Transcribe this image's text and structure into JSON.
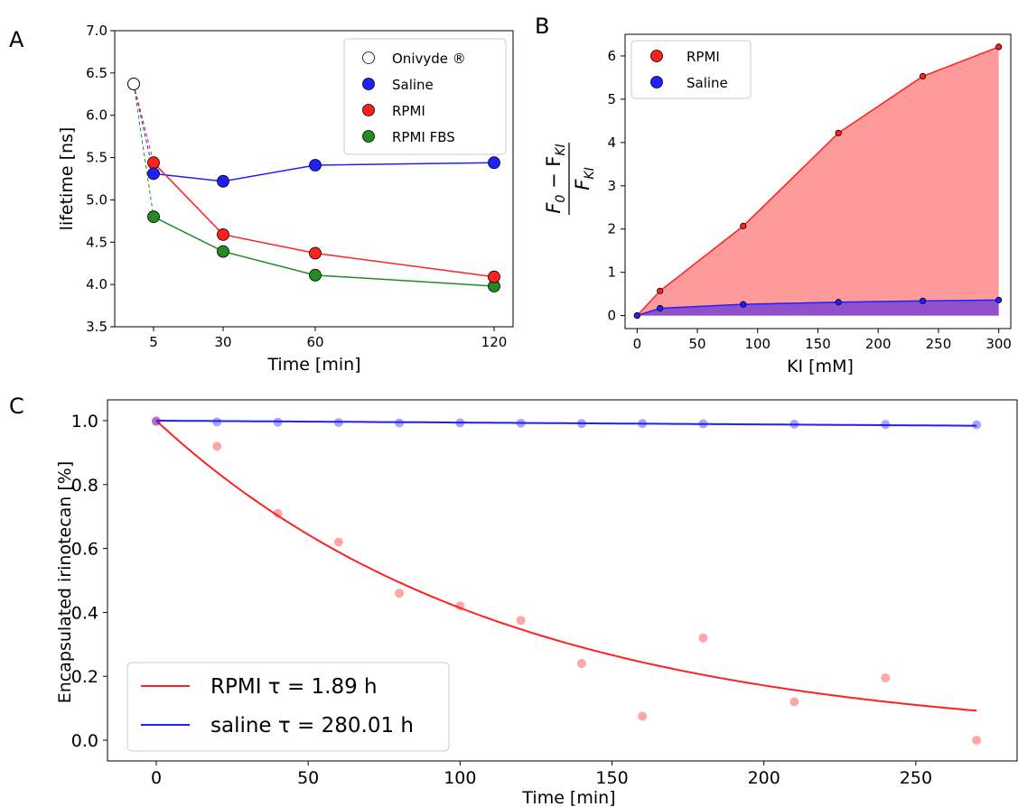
{
  "panels": {
    "a": {
      "letter": "A"
    },
    "b": {
      "letter": "B"
    },
    "c": {
      "letter": "C"
    }
  },
  "chart_data": [
    {
      "id": "A",
      "type": "line",
      "xlabel": "Time [min]",
      "ylabel": "lifetime [ns]",
      "x_ticks": [
        "5",
        "30",
        "60",
        "120"
      ],
      "y_ticks": [
        "3.5",
        "4.0",
        "4.5",
        "5.0",
        "5.5",
        "6.0",
        "6.5",
        "7.0"
      ],
      "ylim": [
        3.5,
        7.0
      ],
      "legend_position": "top-right",
      "initial_point": {
        "name": "Onivyde ®",
        "x": 0,
        "y": 6.37
      },
      "series": [
        {
          "name": "Saline",
          "color": "#1f1fff",
          "x": [
            5,
            30,
            60,
            120
          ],
          "values": [
            5.31,
            5.22,
            5.41,
            5.44
          ]
        },
        {
          "name": "RPMI",
          "color": "#ff2020",
          "x": [
            5,
            30,
            60,
            120
          ],
          "values": [
            5.44,
            4.59,
            4.37,
            4.09
          ]
        },
        {
          "name": "RPMI FBS",
          "color": "#228b22",
          "x": [
            5,
            30,
            60,
            120
          ],
          "values": [
            4.8,
            4.39,
            4.11,
            3.98
          ]
        }
      ]
    },
    {
      "id": "B",
      "type": "area",
      "xlabel": "KI [mM]",
      "ylabel_num": "F",
      "ylabel_num_sub0": "0",
      "ylabel_minus": " − F",
      "ylabel_num_sub": "KI",
      "ylabel_den": "F",
      "ylabel_den_sub": "KI",
      "x_ticks": [
        "0",
        "50",
        "100",
        "150",
        "200",
        "250",
        "300"
      ],
      "y_ticks": [
        "0",
        "1",
        "2",
        "3",
        "4",
        "5",
        "6"
      ],
      "xlim": [
        -10,
        310
      ],
      "ylim": [
        -0.3,
        6.5
      ],
      "legend_position": "top-left",
      "series": [
        {
          "name": "RPMI",
          "color": "#ff2020",
          "fill": "#ff9a9a",
          "x": [
            0,
            19,
            88,
            167,
            237,
            300
          ],
          "values": [
            0.0,
            0.57,
            2.07,
            4.22,
            5.53,
            6.21
          ]
        },
        {
          "name": "Saline",
          "color": "#1f1fff",
          "fill": "#9050cc",
          "x": [
            0,
            19,
            88,
            167,
            237,
            300
          ],
          "values": [
            0.0,
            0.17,
            0.26,
            0.31,
            0.34,
            0.36
          ]
        }
      ]
    },
    {
      "id": "C",
      "type": "scatter",
      "xlabel": "Time [min]",
      "ylabel": "Encapsulated irinotecan [%]",
      "x_ticks": [
        "0",
        "50",
        "100",
        "150",
        "200",
        "250"
      ],
      "y_ticks": [
        "0.0",
        "0.2",
        "0.4",
        "0.6",
        "0.8",
        "1.0"
      ],
      "xlim": [
        -15,
        285
      ],
      "ylim": [
        -0.05,
        1.05
      ],
      "legend_position": "bottom-left",
      "series": [
        {
          "name": "RPMI τ = 1.89 h",
          "color": "#ff2020",
          "x": [
            0,
            20,
            40,
            60,
            80,
            100,
            120,
            140,
            160,
            180,
            210,
            240,
            270
          ],
          "values": [
            1.0,
            0.92,
            0.71,
            0.62,
            0.46,
            0.42,
            0.375,
            0.24,
            0.075,
            0.32,
            0.12,
            0.195,
            0.0
          ],
          "tau_hours": 1.89
        },
        {
          "name": "saline τ = 280.01 h",
          "color": "#1f1fff",
          "x": [
            0,
            20,
            40,
            60,
            80,
            100,
            120,
            140,
            160,
            180,
            210,
            240,
            270
          ],
          "values": [
            0.997,
            0.996,
            0.995,
            0.994,
            0.993,
            0.993,
            0.992,
            0.991,
            0.991,
            0.99,
            0.989,
            0.988,
            0.987
          ],
          "tau_hours": 280.01
        }
      ]
    }
  ]
}
